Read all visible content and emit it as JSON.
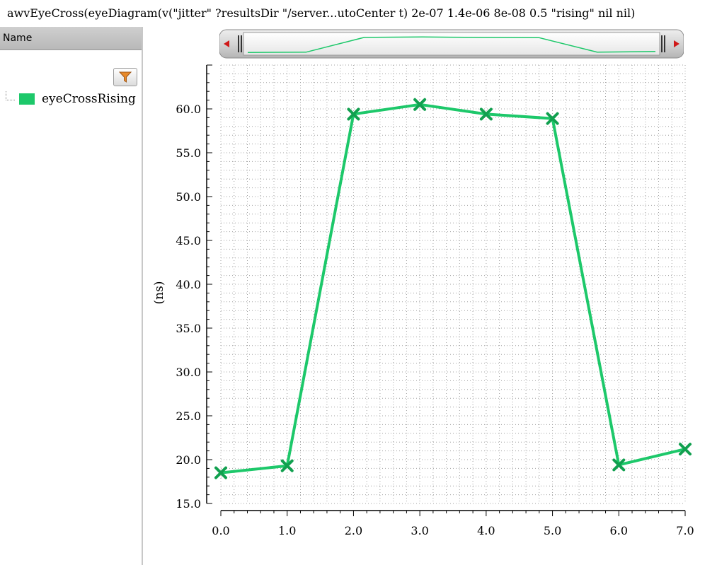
{
  "window": {
    "title": "awvEyeCross(eyeDiagram(v(\"jitter\" ?resultsDir \"/server...utoCenter t) 2e-07 1.4e-06 8e-08 0.5 \"rising\" nil nil)"
  },
  "left_panel": {
    "header": "Name",
    "filter_icon": "funnel-icon",
    "items": [
      {
        "label": "eyeCrossRising",
        "color": "#1dc86a"
      }
    ]
  },
  "colors": {
    "trace": "#1dc86a",
    "grid": "#a0a0a0",
    "panel_header": "#c4c4c4"
  },
  "chart_data": {
    "type": "line",
    "title": "",
    "xlabel": "",
    "ylabel": "(ns)",
    "xlim": [
      0,
      7
    ],
    "ylim": [
      15,
      65
    ],
    "xticks": [
      "0.0",
      "1.0",
      "2.0",
      "3.0",
      "4.0",
      "5.0",
      "6.0",
      "7.0"
    ],
    "yticks": [
      "15.0",
      "20.0",
      "25.0",
      "30.0",
      "35.0",
      "40.0",
      "45.0",
      "50.0",
      "55.0",
      "60.0"
    ],
    "grid": true,
    "series": [
      {
        "name": "eyeCrossRising",
        "color": "#1dc86a",
        "marker": "x",
        "x": [
          0,
          1,
          2,
          3,
          4,
          5,
          6,
          7
        ],
        "y": [
          18.5,
          19.3,
          59.4,
          60.5,
          59.4,
          58.9,
          19.4,
          21.2
        ]
      }
    ]
  }
}
